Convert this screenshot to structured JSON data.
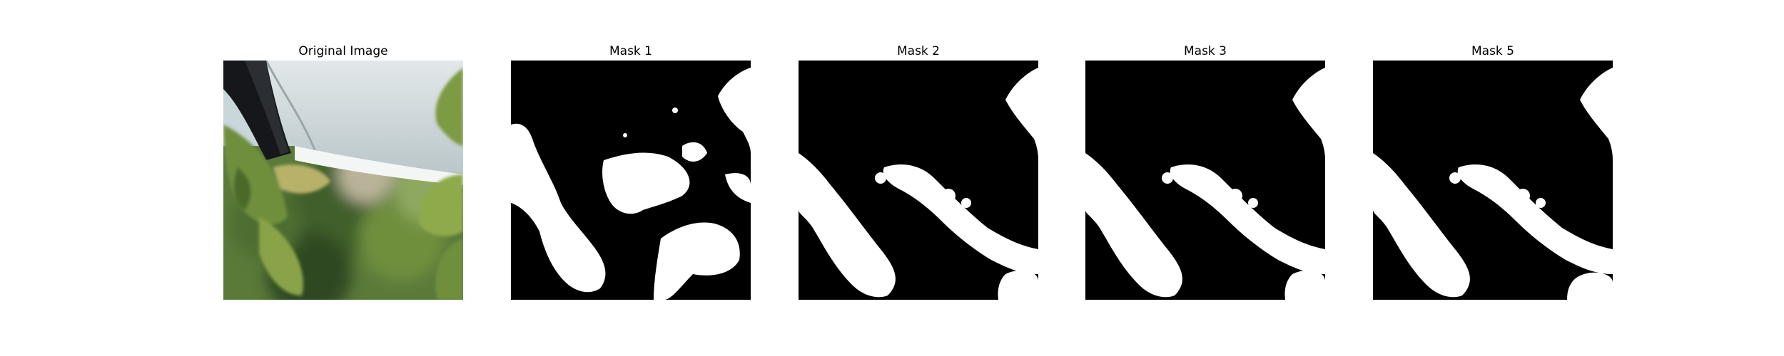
{
  "panels": [
    {
      "title": "Original Image"
    },
    {
      "title": "Mask 1"
    },
    {
      "title": "Mask 2"
    },
    {
      "title": "Mask 3"
    },
    {
      "title": "Mask 5"
    }
  ],
  "colors": {
    "background": "#ffffff",
    "mask_foreground": "#ffffff",
    "mask_background": "#000000",
    "sky": "#c9d6da",
    "leaf_green": "#6f8f3c",
    "dark_foliage": "#2f4a22"
  }
}
